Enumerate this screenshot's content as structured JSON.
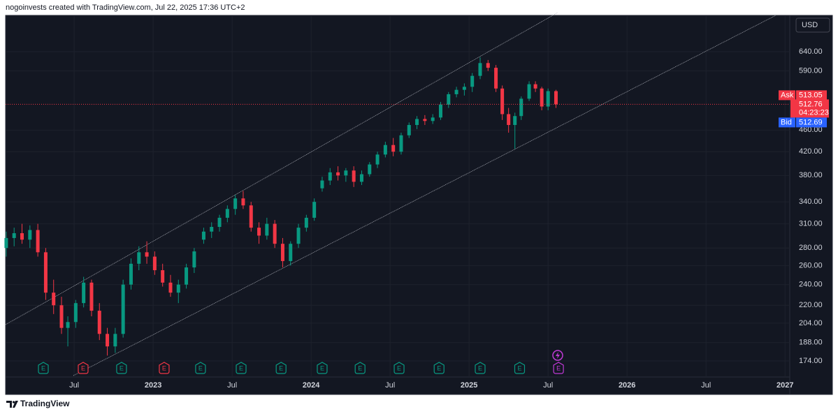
{
  "header": {
    "text": "nogoinvests created with TradingView.com, Jul 22, 2025 17:36 UTC+2"
  },
  "currency_button": "USD",
  "footer": {
    "brand": "TradingView"
  },
  "chart_data": {
    "type": "candlestick",
    "log_scale": true,
    "grid": true,
    "up_color": "#089981",
    "down_color": "#f23645",
    "xlim": [
      2022.066,
      2027.03
    ],
    "ylim": [
      163.6,
      745.7
    ],
    "xticks": [
      {
        "value": 2022.5,
        "label": "Jul"
      },
      2023,
      {
        "value": 2023.5,
        "label": "Jul"
      },
      2024,
      {
        "value": 2024.5,
        "label": "Jul"
      },
      2025,
      {
        "value": 2025.5,
        "label": "Jul"
      },
      2026,
      {
        "value": 2026.5,
        "label": "Jul"
      },
      2027
    ],
    "yticks": [
      {
        "value": 174,
        "label": "174.00"
      },
      {
        "value": 188,
        "label": "188.00"
      },
      {
        "value": 204,
        "label": "204.00"
      },
      {
        "value": 220,
        "label": "220.00"
      },
      {
        "value": 240,
        "label": "240.00"
      },
      {
        "value": 260,
        "label": "260.00"
      },
      {
        "value": 280,
        "label": "280.00"
      },
      {
        "value": 310,
        "label": "310.00"
      },
      {
        "value": 340,
        "label": "340.00"
      },
      {
        "value": 380,
        "label": "380.00"
      },
      {
        "value": 420,
        "label": "420.00"
      },
      {
        "value": 460,
        "label": "460.00"
      },
      {
        "value": 590,
        "label": "590.00"
      },
      {
        "value": 640,
        "label": "640.00"
      }
    ],
    "x": [
      2022.07,
      2022.12,
      2022.17,
      2022.22,
      2022.27,
      2022.32,
      2022.37,
      2022.42,
      2022.46,
      2022.51,
      2022.56,
      2022.61,
      2022.66,
      2022.71,
      2022.76,
      2022.81,
      2022.86,
      2022.91,
      2022.96,
      2023.01,
      2023.06,
      2023.11,
      2023.16,
      2023.21,
      2023.26,
      2023.32,
      2023.37,
      2023.42,
      2023.47,
      2023.52,
      2023.57,
      2023.62,
      2023.67,
      2023.72,
      2023.77,
      2023.82,
      2023.87,
      2023.92,
      2023.97,
      2024.02,
      2024.07,
      2024.12,
      2024.17,
      2024.22,
      2024.27,
      2024.32,
      2024.37,
      2024.42,
      2024.47,
      2024.52,
      2024.57,
      2024.62,
      2024.67,
      2024.72,
      2024.77,
      2024.82,
      2024.87,
      2024.92,
      2024.97,
      2025.02,
      2025.07,
      2025.12,
      2025.17,
      2025.21,
      2025.25,
      2025.29,
      2025.33,
      2025.38,
      2025.42,
      2025.46,
      2025.5,
      2025.55
    ],
    "open": [
      280,
      292,
      298,
      290,
      302,
      275,
      232,
      220,
      200,
      205,
      222,
      242,
      215,
      195,
      185,
      195,
      240,
      262,
      275,
      270,
      255,
      242,
      232,
      240,
      258,
      290,
      300,
      306,
      318,
      330,
      345,
      335,
      305,
      295,
      310,
      285,
      265,
      285,
      305,
      318,
      360,
      372,
      385,
      380,
      388,
      370,
      382,
      398,
      415,
      432,
      420,
      450,
      470,
      482,
      478,
      485,
      512,
      535,
      545,
      552,
      578,
      610,
      598,
      548,
      492,
      470,
      488,
      525,
      558,
      548,
      508,
      542
    ],
    "high": [
      300,
      305,
      310,
      308,
      310,
      280,
      245,
      228,
      210,
      225,
      248,
      245,
      222,
      200,
      200,
      245,
      268,
      282,
      288,
      276,
      262,
      250,
      245,
      262,
      280,
      305,
      312,
      322,
      335,
      350,
      356,
      340,
      312,
      318,
      315,
      292,
      288,
      310,
      322,
      345,
      378,
      392,
      395,
      392,
      395,
      388,
      402,
      420,
      438,
      445,
      455,
      475,
      488,
      490,
      492,
      518,
      540,
      552,
      560,
      585,
      625,
      618,
      605,
      555,
      505,
      495,
      530,
      565,
      565,
      552,
      548,
      545
    ],
    "low": [
      270,
      282,
      285,
      280,
      270,
      225,
      212,
      195,
      185,
      200,
      218,
      210,
      190,
      178,
      180,
      192,
      235,
      255,
      262,
      250,
      238,
      228,
      222,
      236,
      252,
      285,
      292,
      300,
      312,
      322,
      330,
      300,
      285,
      290,
      280,
      258,
      260,
      280,
      300,
      314,
      355,
      365,
      372,
      370,
      362,
      365,
      378,
      392,
      410,
      412,
      415,
      445,
      462,
      470,
      472,
      480,
      505,
      528,
      532,
      540,
      570,
      590,
      540,
      480,
      455,
      425,
      480,
      520,
      540,
      500,
      500,
      505
    ],
    "close": [
      292,
      298,
      290,
      302,
      275,
      232,
      220,
      200,
      205,
      222,
      242,
      215,
      195,
      185,
      195,
      240,
      262,
      275,
      270,
      255,
      242,
      232,
      240,
      258,
      276,
      300,
      306,
      318,
      330,
      345,
      335,
      305,
      295,
      310,
      285,
      265,
      285,
      305,
      318,
      340,
      372,
      385,
      380,
      388,
      370,
      382,
      398,
      415,
      432,
      420,
      450,
      470,
      482,
      478,
      485,
      512,
      535,
      545,
      552,
      578,
      610,
      598,
      548,
      492,
      470,
      488,
      525,
      558,
      548,
      508,
      542,
      512.76
    ],
    "last_price": {
      "value": 512.76,
      "countdown": "04:23:23",
      "color": "#f23645"
    },
    "ask": {
      "name": "Ask",
      "value": 513.05,
      "color": "#f23645"
    },
    "bid": {
      "name": "Bid",
      "value": 512.69,
      "color": "#2962ff"
    },
    "earnings": [
      {
        "x": 2022.305,
        "label": "E",
        "color": "#089981"
      },
      {
        "x": 2022.557,
        "label": "E",
        "color": "#f23645"
      },
      {
        "x": 2022.8,
        "label": "E",
        "color": "#089981"
      },
      {
        "x": 2023.07,
        "label": "E",
        "color": "#f23645"
      },
      {
        "x": 2023.3,
        "label": "E",
        "color": "#089981"
      },
      {
        "x": 2023.557,
        "label": "E",
        "color": "#089981"
      },
      {
        "x": 2023.81,
        "label": "E",
        "color": "#089981"
      },
      {
        "x": 2024.07,
        "label": "E",
        "color": "#089981"
      },
      {
        "x": 2024.31,
        "label": "E",
        "color": "#089981"
      },
      {
        "x": 2024.557,
        "label": "E",
        "color": "#089981"
      },
      {
        "x": 2024.81,
        "label": "E",
        "color": "#089981"
      },
      {
        "x": 2025.07,
        "label": "E",
        "color": "#089981"
      },
      {
        "x": 2025.32,
        "label": "E",
        "color": "#089981"
      },
      {
        "x": 2025.566,
        "label": "E",
        "color": "#c03ad6"
      }
    ]
  }
}
